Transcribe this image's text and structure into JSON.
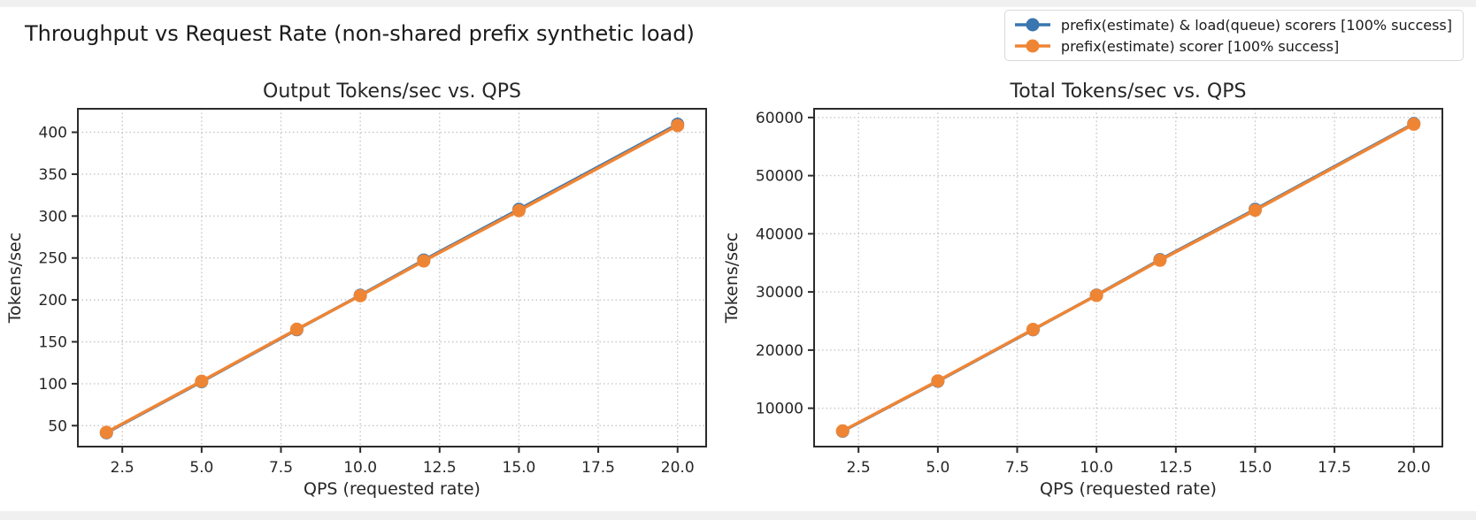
{
  "figure": {
    "suptitle": "Throughput vs Request Rate (non-shared prefix synthetic load)"
  },
  "legend": {
    "items": [
      {
        "label": "prefix(estimate) & load(queue) scorers [100% success]",
        "color": "#3a76b0"
      },
      {
        "label": "prefix(estimate) scorer [100% success]",
        "color": "#ee8535"
      }
    ]
  },
  "colors": {
    "series_blue": "#3a76b0",
    "series_orange": "#ee8535",
    "grid": "#c6c6c6",
    "spine": "#2b2b2b",
    "text": "#262626"
  },
  "chart_data": [
    {
      "type": "line",
      "title": "Output Tokens/sec vs. QPS",
      "xlabel": "QPS (requested rate)",
      "ylabel": "Tokens/sec",
      "x": [
        2,
        5,
        8,
        10,
        12,
        15,
        20
      ],
      "series": [
        {
          "name": "prefix(estimate) & load(queue) scorers [100% success]",
          "color": "#3a76b0",
          "values": [
            41.5,
            102.5,
            164.5,
            205.5,
            247.5,
            308,
            409.5
          ]
        },
        {
          "name": "prefix(estimate) scorer [100% success]",
          "color": "#ee8535",
          "values": [
            42,
            103,
            165,
            205,
            246.5,
            306.5,
            408
          ]
        }
      ],
      "xlim": [
        1.1,
        20.9
      ],
      "ylim": [
        25,
        428
      ],
      "xticks": [
        2.5,
        5,
        7.5,
        10,
        12.5,
        15,
        17.5,
        20
      ],
      "xtick_labels": [
        "2.5",
        "5.0",
        "7.5",
        "10.0",
        "12.5",
        "15.0",
        "17.5",
        "20.0"
      ],
      "yticks": [
        50,
        100,
        150,
        200,
        250,
        300,
        350,
        400
      ],
      "ytick_labels": [
        "50",
        "100",
        "150",
        "200",
        "250",
        "300",
        "350",
        "400"
      ],
      "grid": true,
      "legend_position": "figure-top-right"
    },
    {
      "type": "line",
      "title": "Total Tokens/sec vs. QPS",
      "xlabel": "QPS (requested rate)",
      "ylabel": "Tokens/sec",
      "x": [
        2,
        5,
        8,
        10,
        12,
        15,
        20
      ],
      "series": [
        {
          "name": "prefix(estimate) & load(queue) scorers [100% success]",
          "color": "#3a76b0",
          "values": [
            6050,
            14650,
            23500,
            29450,
            35550,
            44200,
            58950
          ]
        },
        {
          "name": "prefix(estimate) scorer [100% success]",
          "color": "#ee8535",
          "values": [
            6100,
            14700,
            23550,
            29400,
            35450,
            44050,
            58850
          ]
        }
      ],
      "xlim": [
        1.1,
        20.9
      ],
      "ylim": [
        3400,
        61500
      ],
      "xticks": [
        2.5,
        5,
        7.5,
        10,
        12.5,
        15,
        17.5,
        20
      ],
      "xtick_labels": [
        "2.5",
        "5.0",
        "7.5",
        "10.0",
        "12.5",
        "15.0",
        "17.5",
        "20.0"
      ],
      "yticks": [
        10000,
        20000,
        30000,
        40000,
        50000,
        60000
      ],
      "ytick_labels": [
        "10000",
        "20000",
        "30000",
        "40000",
        "50000",
        "60000"
      ],
      "grid": true,
      "legend_position": "figure-top-right"
    }
  ]
}
